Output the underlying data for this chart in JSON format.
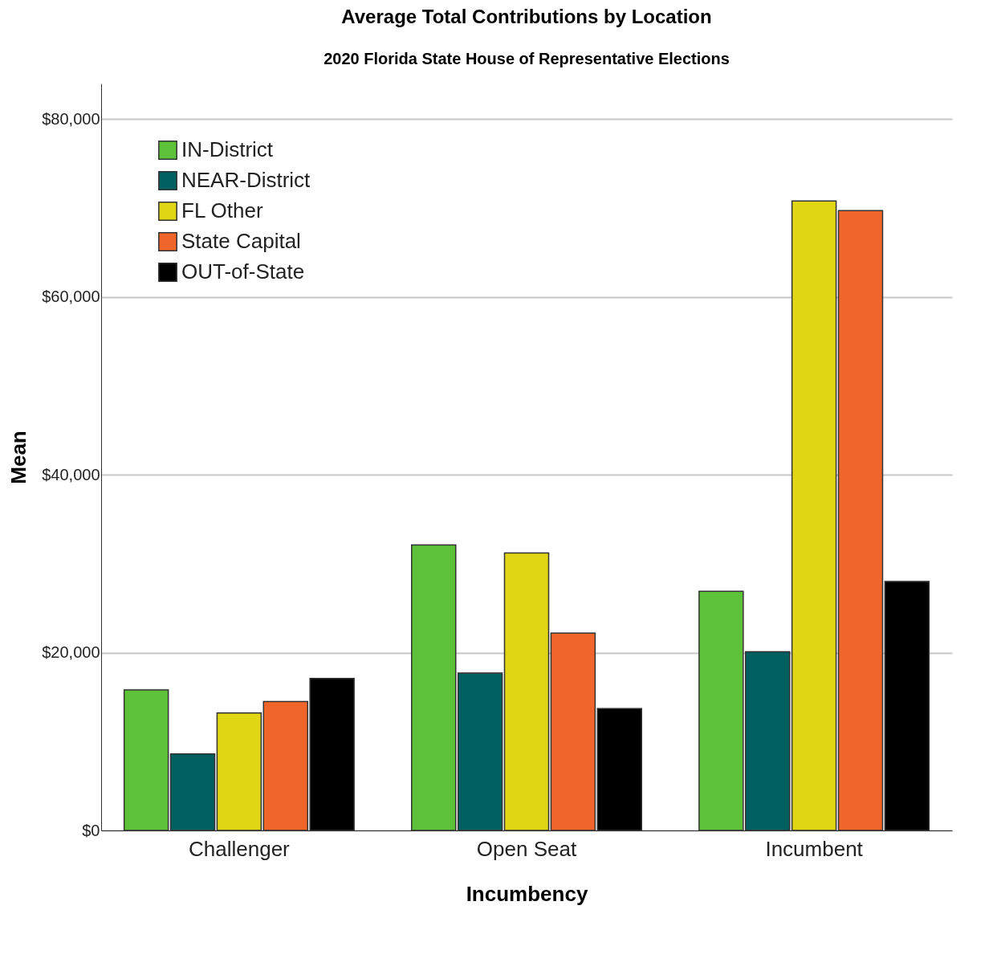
{
  "chart_data": {
    "type": "bar",
    "title": "Average Total Contributions by Location",
    "subtitle": "2020 Florida State House of Representative Elections",
    "xlabel": "Incumbency",
    "ylabel": "Mean",
    "categories": [
      "Challenger",
      "Open Seat",
      "Incumbent"
    ],
    "series": [
      {
        "name": "IN-District",
        "color": "#5dc13a",
        "values": [
          15800,
          32100,
          26900
        ]
      },
      {
        "name": "NEAR-District",
        "color": "#005f5f",
        "values": [
          8600,
          17700,
          20100
        ]
      },
      {
        "name": "FL Other",
        "color": "#e1d614",
        "values": [
          13200,
          31200,
          70800
        ]
      },
      {
        "name": "State Capital",
        "color": "#ef652a",
        "values": [
          14500,
          22200,
          69700
        ]
      },
      {
        "name": "OUT-of-State",
        "color": "#000000",
        "values": [
          17100,
          13700,
          28000
        ]
      }
    ],
    "ylim": [
      0,
      84000
    ],
    "yticks": [
      {
        "value": 0,
        "label": "$0"
      },
      {
        "value": 20000,
        "label": "$20,000"
      },
      {
        "value": 40000,
        "label": "$40,000"
      },
      {
        "value": 60000,
        "label": "$60,000"
      },
      {
        "value": 80000,
        "label": "$80,000"
      }
    ],
    "grid": "y",
    "legend": "top left"
  }
}
